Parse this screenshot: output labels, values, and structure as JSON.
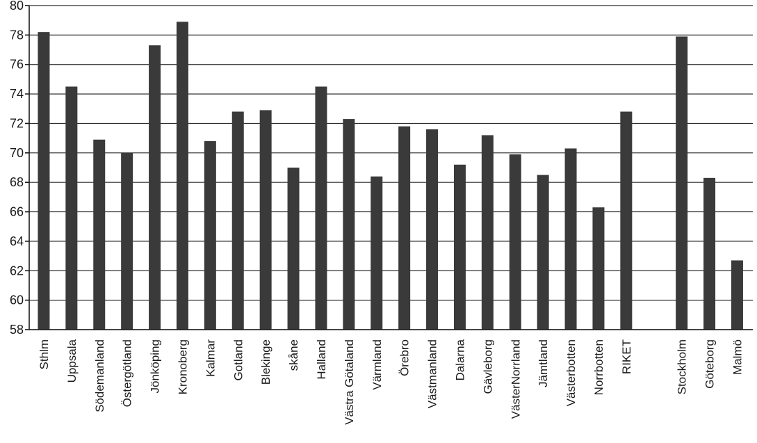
{
  "chart_data": {
    "type": "bar",
    "title": "",
    "xlabel": "",
    "ylabel": "",
    "ylim": [
      58,
      80
    ],
    "yticks": [
      58,
      60,
      62,
      64,
      66,
      68,
      70,
      72,
      74,
      76,
      78,
      80
    ],
    "grid": true,
    "legend": "none",
    "bar_color": "#3a3a3a",
    "categories": [
      "Sthlm",
      "Uppsala",
      "Södemanland",
      "Östergötland",
      "Jönköping",
      "Kronoberg",
      "Kalmar",
      "Gotland",
      "Blekinge",
      "skåne",
      "Halland",
      "Västra Götaland",
      "Värmland",
      "Örebro",
      "Västmanland",
      "Dalarna",
      "Gävleborg",
      "VästerNorrland",
      "Jämtland",
      "Västerbotten",
      "Norrbotten",
      "RIKET",
      "Stockholm",
      "Göteborg",
      "Malmö"
    ],
    "values": [
      78.2,
      74.5,
      70.9,
      70.0,
      77.3,
      78.9,
      70.8,
      72.8,
      72.9,
      69.0,
      74.5,
      72.3,
      68.4,
      71.8,
      71.6,
      69.2,
      71.2,
      69.9,
      68.5,
      70.3,
      66.3,
      72.8,
      77.9,
      68.3,
      62.7
    ]
  }
}
